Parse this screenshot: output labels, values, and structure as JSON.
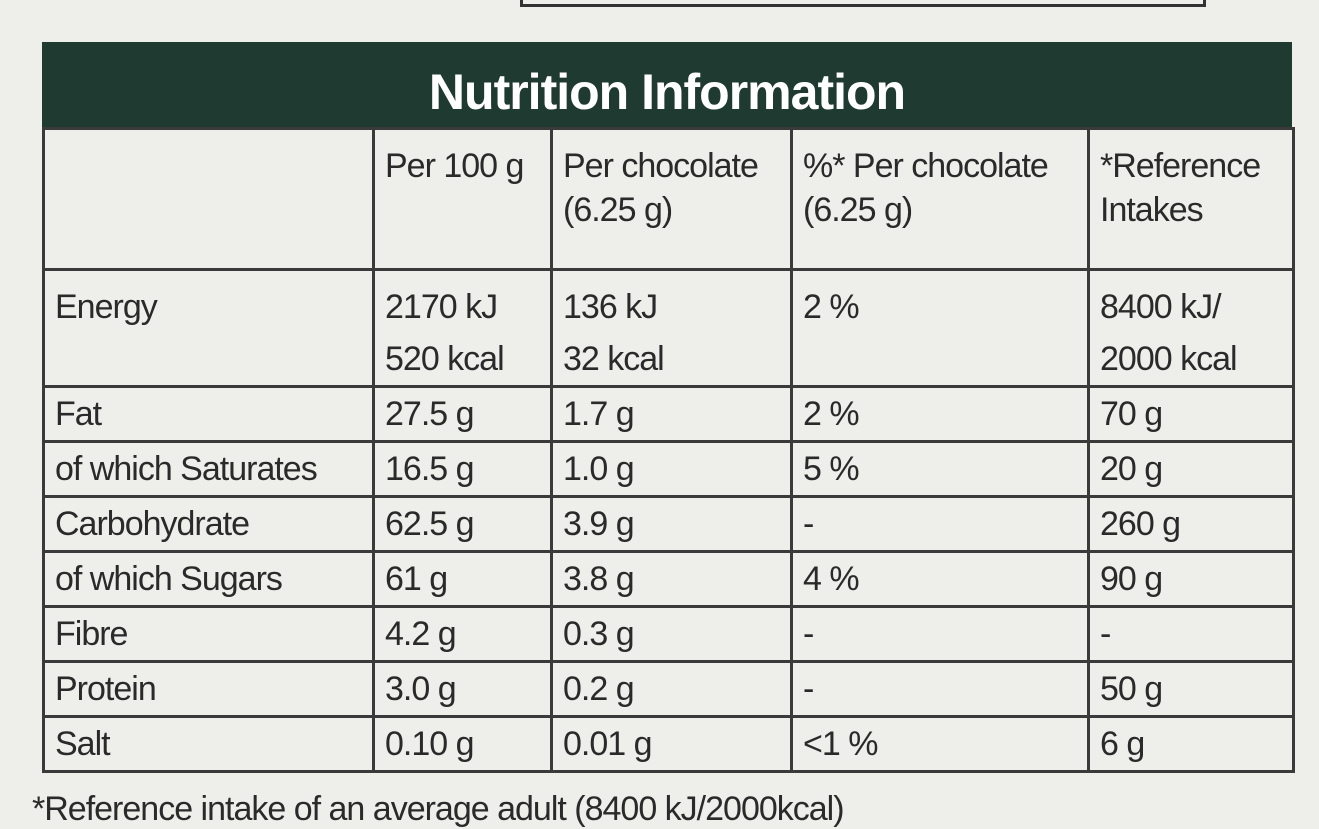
{
  "title": "Nutrition Information",
  "table": {
    "header": [
      [
        "Per 100 g"
      ],
      [
        "Per chocolate",
        "(6.25 g)"
      ],
      [
        "%* Per chocolate",
        "(6.25 g)"
      ],
      [
        "*Reference",
        "Intakes"
      ]
    ],
    "rows": [
      {
        "label": "Energy",
        "cells": [
          [
            "2170 kJ",
            "520 kcal"
          ],
          [
            "136 kJ",
            "32 kcal"
          ],
          [
            "2 %"
          ],
          [
            "8400 kJ/",
            "2000 kcal"
          ]
        ]
      },
      {
        "label": "Fat",
        "cells": [
          [
            "27.5 g"
          ],
          [
            "1.7 g"
          ],
          [
            "2 %"
          ],
          [
            "70 g"
          ]
        ]
      },
      {
        "label": "of which Saturates",
        "cells": [
          [
            "16.5 g"
          ],
          [
            "1.0 g"
          ],
          [
            "5 %"
          ],
          [
            "20 g"
          ]
        ]
      },
      {
        "label": "Carbohydrate",
        "cells": [
          [
            "62.5 g"
          ],
          [
            "3.9 g"
          ],
          [
            "-"
          ],
          [
            "260 g"
          ]
        ]
      },
      {
        "label": "of which Sugars",
        "cells": [
          [
            "61 g"
          ],
          [
            "3.8 g"
          ],
          [
            "4 %"
          ],
          [
            "90 g"
          ]
        ]
      },
      {
        "label": "Fibre",
        "cells": [
          [
            "4.2 g"
          ],
          [
            "0.3 g"
          ],
          [
            "-"
          ],
          [
            "-"
          ]
        ]
      },
      {
        "label": "Protein",
        "cells": [
          [
            "3.0 g"
          ],
          [
            "0.2 g"
          ],
          [
            "-"
          ],
          [
            "50 g"
          ]
        ]
      },
      {
        "label": "Salt",
        "cells": [
          [
            "0.10 g"
          ],
          [
            "0.01 g"
          ],
          [
            "<1 %"
          ],
          [
            "6 g"
          ]
        ]
      }
    ]
  },
  "footnote": "*Reference intake of an average adult (8400 kJ/2000kcal)"
}
